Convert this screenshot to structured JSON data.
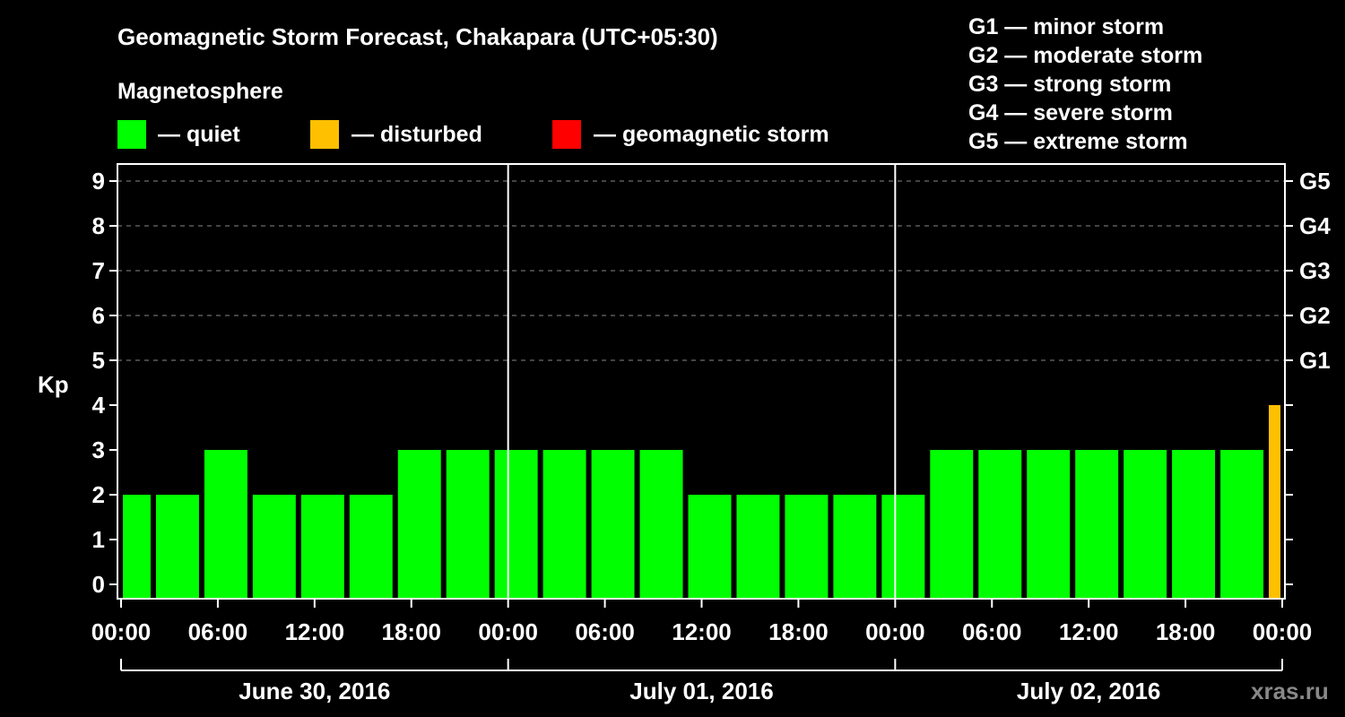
{
  "chart_data": {
    "type": "bar",
    "title": "Geomagnetic Storm Forecast, Chakapara (UTC+05:30)",
    "legend_title": "Magnetosphere",
    "legend": [
      {
        "label": "— quiet",
        "color": "#00ff00"
      },
      {
        "label": "— disturbed",
        "color": "#ffc000"
      },
      {
        "label": "— geomagnetic storm",
        "color": "#ff0000"
      }
    ],
    "storm_scale": [
      "G1 — minor storm",
      "G2 — moderate storm",
      "G3 — strong storm",
      "G4 — severe storm",
      "G5 — extreme storm"
    ],
    "ylabel": "Kp",
    "ylim": [
      0,
      9
    ],
    "yticks": [
      "0",
      "1",
      "2",
      "3",
      "4",
      "5",
      "6",
      "7",
      "8",
      "9"
    ],
    "right_ticks": [
      {
        "kp": 5,
        "label": "G1"
      },
      {
        "kp": 6,
        "label": "G2"
      },
      {
        "kp": 7,
        "label": "G3"
      },
      {
        "kp": 8,
        "label": "G4"
      },
      {
        "kp": 9,
        "label": "G5"
      }
    ],
    "xlim_hours": [
      0,
      72
    ],
    "xticks": [
      "00:00",
      "06:00",
      "12:00",
      "18:00",
      "00:00",
      "06:00",
      "12:00",
      "18:00",
      "00:00",
      "06:00",
      "12:00",
      "18:00",
      "00:00"
    ],
    "days": [
      "June 30, 2016",
      "July 01, 2016",
      "July 02, 2016"
    ],
    "bar_start_hours": [
      -1,
      2,
      5,
      8,
      11,
      14,
      17,
      20,
      23,
      26,
      29,
      32,
      35,
      38,
      41,
      44,
      47,
      50,
      53,
      56,
      59,
      62,
      65,
      68,
      71
    ],
    "bar_duration_hours": 3,
    "values": [
      2,
      2,
      3,
      2,
      2,
      2,
      3,
      3,
      3,
      3,
      3,
      3,
      2,
      2,
      2,
      2,
      2,
      3,
      3,
      3,
      3,
      3,
      3,
      3,
      4
    ],
    "grid": "dashed horizontal"
  },
  "watermark": "xras.ru"
}
